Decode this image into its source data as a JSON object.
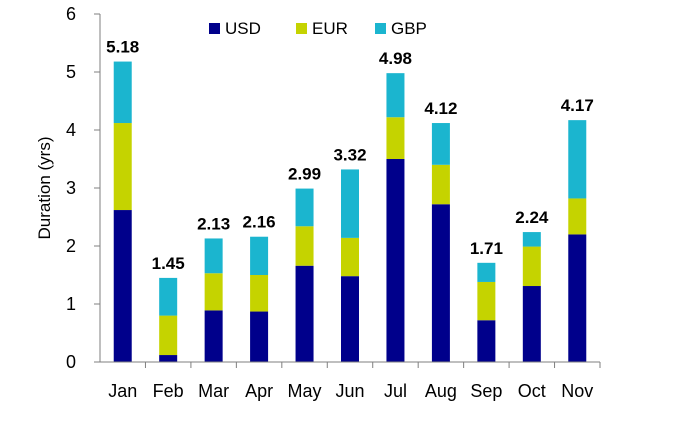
{
  "chart_data": {
    "type": "bar",
    "stacked": true,
    "title": "",
    "xlabel": "",
    "ylabel": "Duration (yrs)",
    "ylim": [
      0,
      6
    ],
    "yticks": [
      "0",
      "1",
      "2",
      "3",
      "4",
      "5",
      "6"
    ],
    "grid": false,
    "legend_position": "top",
    "categories": [
      "Jan",
      "Feb",
      "Mar",
      "Apr",
      "May",
      "Jun",
      "Jul",
      "Aug",
      "Sep",
      "Oct",
      "Nov"
    ],
    "series": [
      {
        "name": "USD",
        "color": "#00008B",
        "values": [
          2.62,
          0.12,
          0.89,
          0.87,
          1.66,
          1.48,
          3.5,
          2.72,
          0.72,
          1.31,
          2.2
        ]
      },
      {
        "name": "EUR",
        "color": "#C5D300",
        "values": [
          1.5,
          0.68,
          0.64,
          0.63,
          0.68,
          0.66,
          0.72,
          0.68,
          0.66,
          0.68,
          0.62
        ]
      },
      {
        "name": "GBP",
        "color": "#1BB5CF",
        "values": [
          1.06,
          0.65,
          0.6,
          0.66,
          0.65,
          1.18,
          0.76,
          0.72,
          0.33,
          0.25,
          1.35
        ]
      }
    ],
    "totals": [
      "5.18",
      "1.45",
      "2.13",
      "2.16",
      "2.99",
      "3.32",
      "4.98",
      "4.12",
      "1.71",
      "2.24",
      "4.17"
    ]
  }
}
